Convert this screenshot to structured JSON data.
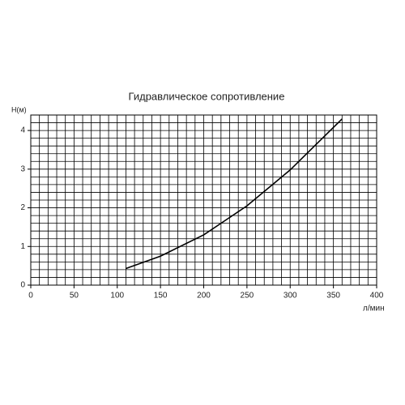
{
  "chart_data": {
    "type": "line",
    "title": "Гидравлическое сопротивление",
    "y_label": "H(м)",
    "x_label": "л/мин",
    "x": [
      110,
      150,
      200,
      250,
      300,
      360
    ],
    "series": [
      {
        "values": [
          0.43,
          0.75,
          1.3,
          2.05,
          2.98,
          4.3
        ],
        "color": "#000000"
      }
    ],
    "xlim": [
      0,
      400
    ],
    "xticks": [
      0,
      50,
      100,
      150,
      200,
      250,
      300,
      350,
      400
    ],
    "ylim": [
      0,
      4.4
    ],
    "yticks": [
      0,
      1,
      2,
      3,
      4
    ],
    "grid": true
  }
}
